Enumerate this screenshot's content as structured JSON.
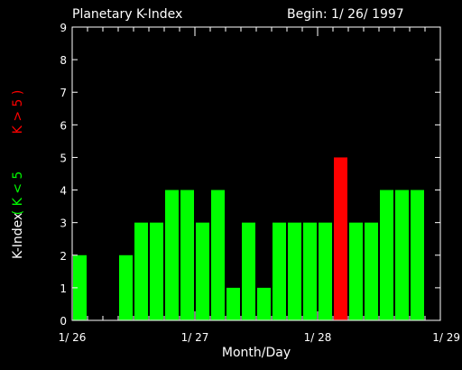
{
  "chart_data": {
    "type": "bar",
    "title": "Planetary K-Index",
    "subtitle": "Begin: 1/ 26/ 1997",
    "xlabel": "Month/Day",
    "ylabel": "K-Index",
    "legend": [
      {
        "label": "( K < 5",
        "color": "#00ff00"
      },
      {
        "label": "K > 5 )",
        "color": "#ff0000"
      }
    ],
    "ylim": [
      0,
      9
    ],
    "yticks": [
      "0",
      "1",
      "2",
      "3",
      "4",
      "5",
      "6",
      "7",
      "8",
      "9"
    ],
    "xlim": [
      0,
      24
    ],
    "xticks": [
      {
        "pos": 0,
        "label": "1/ 26"
      },
      {
        "pos": 8,
        "label": "1/ 27"
      },
      {
        "pos": 16,
        "label": "1/ 28"
      },
      {
        "pos": 24,
        "label": "1/ 29"
      }
    ],
    "values": [
      2,
      0,
      0,
      2,
      3,
      3,
      4,
      4,
      3,
      4,
      1,
      3,
      1,
      3,
      3,
      3,
      3,
      5,
      3,
      3,
      4,
      4,
      4,
      0
    ],
    "threshold": 5,
    "colors": {
      "low": "#00ff00",
      "high": "#ff0000",
      "axis": "#ffffff",
      "background": "#000000"
    }
  }
}
